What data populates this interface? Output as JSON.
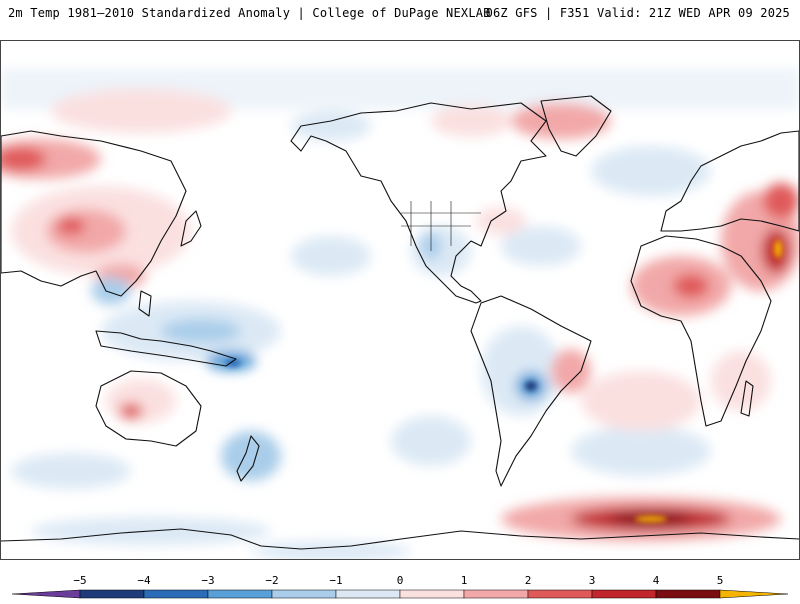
{
  "header": {
    "title_left": "2m Temp 1981–2010 Standardized Anomaly | College of DuPage NEXLAB",
    "title_right": "06Z GFS | F351 Valid: 21Z WED APR 09 2025"
  },
  "colors": {
    "land_outline": "#111111",
    "ocean_background": "#ffffff",
    "scale": [
      "#6a3d9a",
      "#1f3b7a",
      "#2b6cb8",
      "#5aa0d8",
      "#a9cdea",
      "#dce9f5",
      "#fbe0e0",
      "#f2a8a8",
      "#e05a5a",
      "#c0262b",
      "#7a0d12",
      "#f5b400"
    ]
  },
  "colorbar": {
    "ticks": [
      "−5",
      "−4",
      "−3",
      "−2",
      "−1",
      "0",
      "1",
      "2",
      "3",
      "4",
      "5"
    ]
  }
}
